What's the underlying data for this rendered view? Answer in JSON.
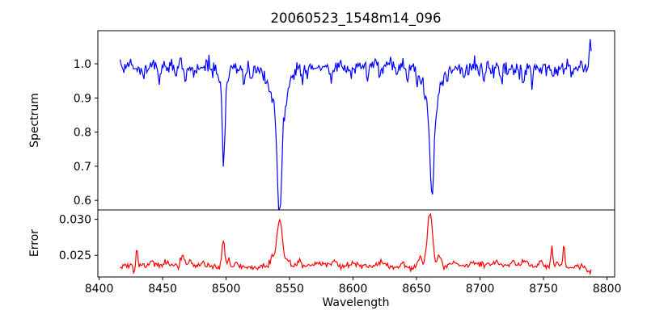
{
  "figure": {
    "background": "#ffffff"
  },
  "chart_data": {
    "type": "line",
    "title": "20060523_1548m14_096",
    "xlabel": "Wavelength",
    "xlim": [
      8399,
      8806
    ],
    "xticks": [
      8400,
      8450,
      8500,
      8550,
      8600,
      8650,
      8700,
      8750,
      8800
    ],
    "xticklabels": [
      "8400",
      "8450",
      "8500",
      "8550",
      "8600",
      "8650",
      "8700",
      "8750",
      "8800"
    ],
    "grid": false,
    "legend": "none",
    "colors": {
      "spectrum_line": "#0000ff",
      "error_line": "#ff0000",
      "axis": "#000000",
      "text": "#000000"
    },
    "panels": [
      {
        "name": "spectrum",
        "ylabel": "Spectrum",
        "ylim": [
          0.572,
          1.097
        ],
        "yticks": [
          0.6,
          0.7,
          0.8,
          0.9,
          1.0
        ],
        "yticklabels": [
          "0.6",
          "0.7",
          "0.8",
          "0.9",
          "1.0"
        ],
        "series": {
          "color": "#0000ff",
          "x_start": 8416.5,
          "x_end": 8787.5,
          "n_points": 494,
          "continuum": 0.99,
          "continuum_wiggle": {
            "amplitude": 0.005,
            "period": 175
          },
          "noise_sigma": 0.0115,
          "seed": 96,
          "absorption_lines": [
            {
              "center": 8498.0,
              "depth": 0.27,
              "core_sigma": 1.0,
              "wing_sigma": 2.6,
              "wing_frac": 0.3
            },
            {
              "center": 8542.1,
              "depth": 0.42,
              "core_sigma": 1.6,
              "wing_sigma": 5.5,
              "wing_frac": 0.35
            },
            {
              "center": 8662.1,
              "depth": 0.385,
              "core_sigma": 1.5,
              "wing_sigma": 5.0,
              "wing_frac": 0.35
            }
          ],
          "weak_line_sigma": 0.8,
          "weak_lines": [
            [
              8435,
              0.03
            ],
            [
              8447,
              0.038
            ],
            [
              8461,
              0.028
            ],
            [
              8468,
              0.05
            ],
            [
              8475,
              0.032
            ],
            [
              8489,
              0.028
            ],
            [
              8514,
              0.035
            ],
            [
              8520,
              0.03
            ],
            [
              8531,
              0.028
            ],
            [
              8560,
              0.025
            ],
            [
              8583,
              0.028
            ],
            [
              8598,
              0.025
            ],
            [
              8611,
              0.034
            ],
            [
              8621,
              0.04
            ],
            [
              8635,
              0.028
            ],
            [
              8643,
              0.045
            ],
            [
              8650,
              0.045
            ],
            [
              8674,
              0.028
            ],
            [
              8688,
              0.03
            ],
            [
              8703,
              0.034
            ],
            [
              8717,
              0.04
            ],
            [
              8734,
              0.05
            ],
            [
              8741,
              0.038
            ],
            [
              8757,
              0.028
            ],
            [
              8772,
              0.03
            ]
          ],
          "end_spike": {
            "x": 8786.8,
            "height": 0.06,
            "sigma": 0.8
          }
        }
      },
      {
        "name": "error",
        "ylabel": "Error",
        "ylim": [
          0.022,
          0.0313
        ],
        "yticks": [
          0.025,
          0.03
        ],
        "yticklabels": [
          "0.025",
          "0.030"
        ],
        "series": {
          "color": "#ff0000",
          "x_start": 8416.5,
          "x_end": 8787.5,
          "n_points": 494,
          "baseline": 0.0235,
          "baseline_wiggle": {
            "amplitude": 0.00015,
            "period": 130
          },
          "noise_sigma": 0.00021,
          "seed": 14,
          "peaks": [
            [
              8427.6,
              -0.0011,
              0.6
            ],
            [
              8429.8,
              0.0021,
              0.7
            ],
            [
              8441,
              0.0006,
              1.5
            ],
            [
              8452,
              0.0005,
              1.2
            ],
            [
              8466,
              0.0014,
              1.3
            ],
            [
              8472,
              0.0008,
              1.0
            ],
            [
              8481,
              0.0005,
              1.2
            ],
            [
              8497.8,
              0.0037,
              1.2
            ],
            [
              8502,
              0.0012,
              1.0
            ],
            [
              8508,
              0.001,
              1.0
            ],
            [
              8536,
              0.0012,
              1.5
            ],
            [
              8542.1,
              0.0065,
              2.2
            ],
            [
              8549,
              0.0008,
              1.5
            ],
            [
              8558,
              0.0006,
              1.5
            ],
            [
              8572,
              0.0004,
              2.0
            ],
            [
              8585,
              0.0004,
              2.0
            ],
            [
              8600,
              0.0003,
              2.0
            ],
            [
              8623,
              0.0007,
              3.0
            ],
            [
              8640,
              0.0005,
              2.0
            ],
            [
              8653,
              0.0014,
              1.5
            ],
            [
              8660.5,
              0.0076,
              2.0
            ],
            [
              8668,
              0.0016,
              1.5
            ],
            [
              8680,
              0.0006,
              2.0
            ],
            [
              8695,
              0.0005,
              2.0
            ],
            [
              8712,
              0.0005,
              2.0
            ],
            [
              8726,
              0.0006,
              1.5
            ],
            [
              8735,
              0.0008,
              1.5
            ],
            [
              8748,
              0.0008,
              1.2
            ],
            [
              8756.5,
              0.0028,
              0.7
            ],
            [
              8761,
              0.0008,
              0.8
            ],
            [
              8766,
              0.0031,
              0.7
            ],
            [
              8776,
              0.0006,
              1.0
            ],
            [
              8786,
              -0.001,
              1.2
            ]
          ]
        }
      }
    ]
  }
}
